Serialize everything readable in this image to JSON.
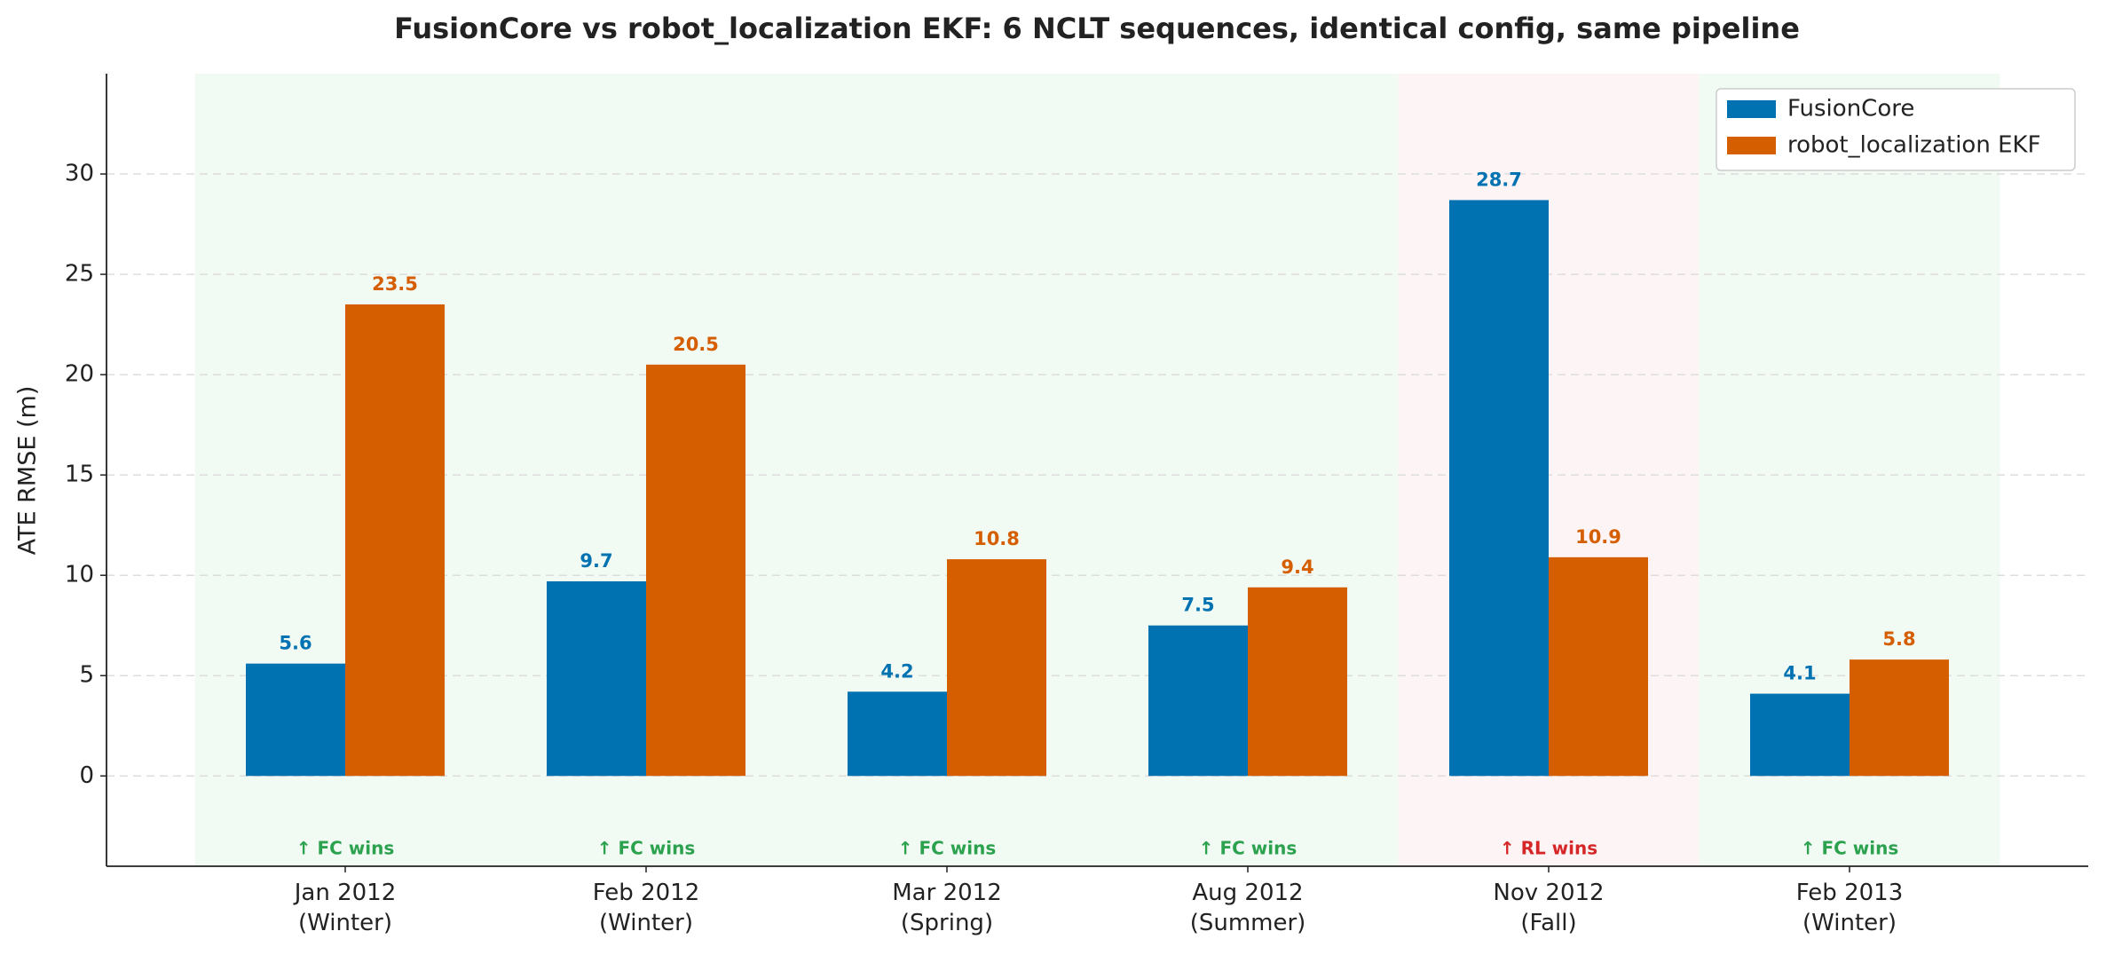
{
  "chart_data": {
    "type": "bar",
    "title": "FusionCore vs robot_localization EKF: 6 NCLT sequences, identical config, same pipeline",
    "y_label": "ATE RMSE (m)",
    "categories": [
      "Jan 2012\n(Winter)",
      "Feb 2012\n(Winter)",
      "Mar 2012\n(Spring)",
      "Aug 2012\n(Summer)",
      "Nov 2012\n(Fall)",
      "Feb 2013\n(Winter)"
    ],
    "series": [
      {
        "name": "FusionCore",
        "color": "#0072b2",
        "values": [
          5.6,
          9.7,
          4.2,
          7.5,
          28.7,
          4.1
        ]
      },
      {
        "name": "robot_localization EKF",
        "color": "#d55e00",
        "values": [
          23.5,
          20.5,
          10.8,
          9.4,
          10.9,
          5.8
        ]
      }
    ],
    "annotations": [
      {
        "text": "↑ FC wins",
        "color": "#2ca24f",
        "background": "#f2faf4"
      },
      {
        "text": "↑ FC wins",
        "color": "#2ca24f",
        "background": "#f2faf4"
      },
      {
        "text": "↑ FC wins",
        "color": "#2ca24f",
        "background": "#f2faf4"
      },
      {
        "text": "↑ FC wins",
        "color": "#2ca24f",
        "background": "#f2faf4"
      },
      {
        "text": "↑ RL wins",
        "color": "#d62728",
        "background": "#fdf5f5"
      },
      {
        "text": "↑ FC wins",
        "color": "#2ca24f",
        "background": "#f2faf4"
      }
    ],
    "ylim": [
      -4.5,
      35
    ],
    "yticks": [
      0,
      5,
      10,
      15,
      20,
      25,
      30
    ],
    "grid": true,
    "legend": "upper right"
  }
}
